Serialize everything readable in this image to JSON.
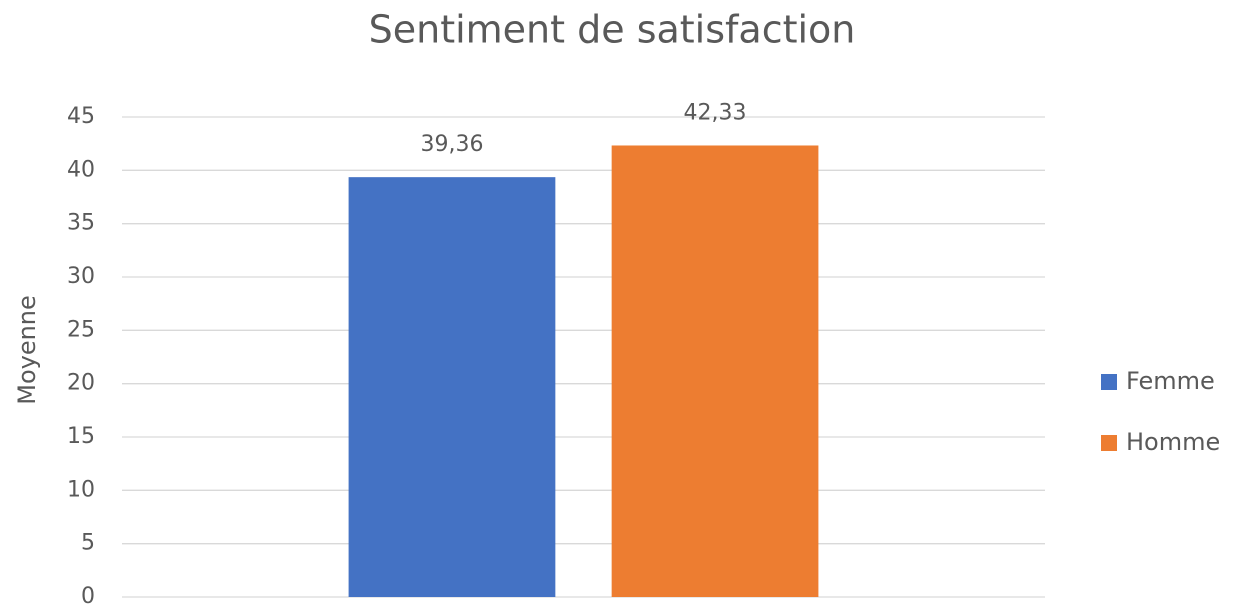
{
  "chart_data": {
    "type": "bar",
    "title": "Sentiment de satisfaction",
    "ylabel": "Moyenne",
    "categories": [
      null
    ],
    "series": [
      {
        "name": "Femme",
        "color": "#4472c4",
        "values": [
          39.36
        ],
        "value_labels": [
          "39,36"
        ]
      },
      {
        "name": "Homme",
        "color": "#ed7d31",
        "values": [
          42.33
        ],
        "value_labels": [
          "42,33"
        ]
      }
    ],
    "ylim": [
      0,
      45
    ],
    "yticks": [
      0,
      5,
      10,
      15,
      20,
      25,
      30,
      35,
      40,
      45
    ],
    "grid": true,
    "legend": "right"
  }
}
